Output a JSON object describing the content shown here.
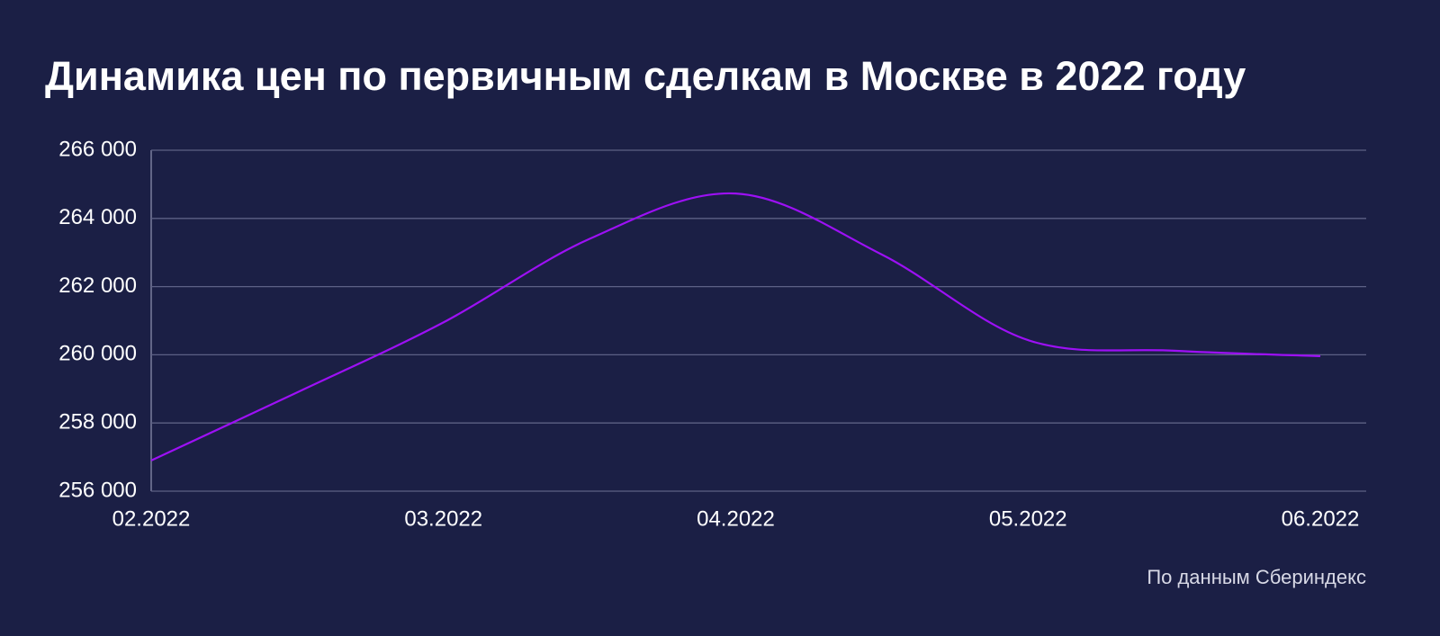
{
  "chart_data": {
    "type": "line",
    "title": "Динамика цен по первичным сделкам в Москве в 2022 году",
    "source": "По данным Сбериндекс",
    "categories": [
      "02.2022",
      null,
      "03.2022",
      null,
      "04.2022",
      null,
      "05.2022",
      null,
      "06.2022"
    ],
    "series": [
      {
        "color": "#9d10f5",
        "values": [
          256900,
          258900,
          260950,
          263400,
          264730,
          262940,
          260430,
          260120,
          259960
        ]
      }
    ],
    "ylim": [
      256000,
      266000
    ],
    "yticks": [
      {
        "value": 256000,
        "label": "256 000"
      },
      {
        "value": 258000,
        "label": "258 000"
      },
      {
        "value": 260000,
        "label": "260 000"
      },
      {
        "value": 262000,
        "label": "262 000"
      },
      {
        "value": 264000,
        "label": "264 000"
      },
      {
        "value": 266000,
        "label": "266 000"
      }
    ],
    "grid": true
  }
}
